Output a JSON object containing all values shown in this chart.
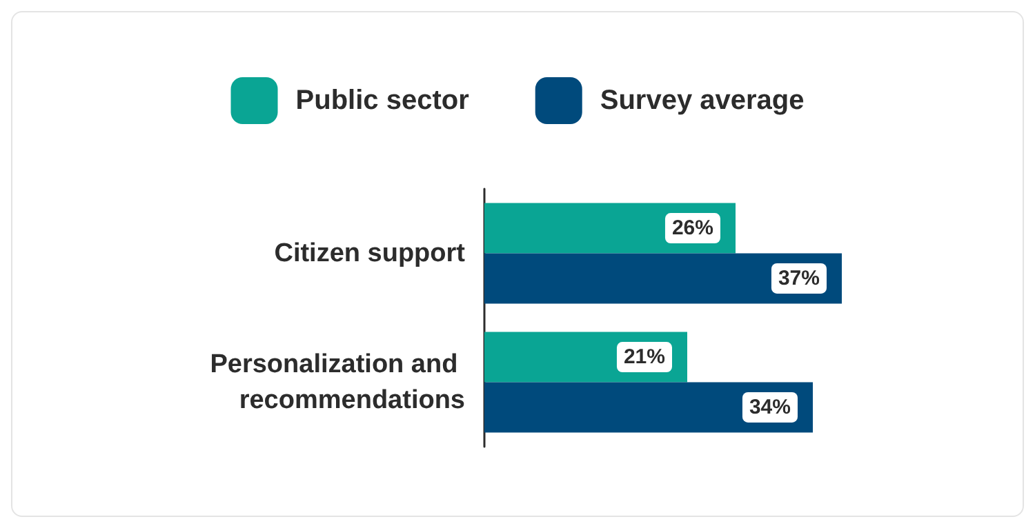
{
  "chart_data": {
    "type": "bar",
    "orientation": "horizontal",
    "categories": [
      "Citizen support",
      "Personalization and recommendations"
    ],
    "series": [
      {
        "name": "Public sector",
        "color": "#0aa594",
        "values": [
          26,
          21
        ],
        "value_labels": [
          "26%",
          "21%"
        ]
      },
      {
        "name": "Survey average",
        "color": "#004a7c",
        "values": [
          37,
          34
        ],
        "value_labels": [
          "37%",
          "34%"
        ]
      }
    ],
    "legend": "top",
    "grid": false
  }
}
